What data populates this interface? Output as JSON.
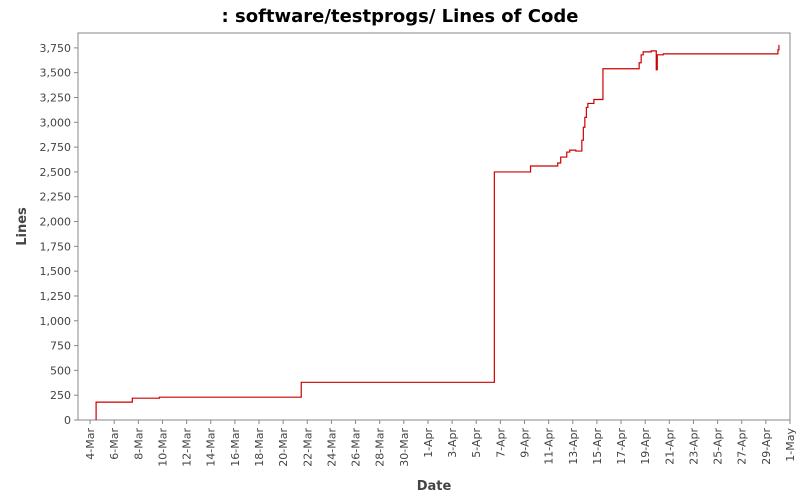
{
  "chart_data": {
    "type": "line",
    "title": ": software/testprogs/ Lines of Code",
    "xlabel": "Date",
    "ylabel": "Lines",
    "x_axis_kind": "date",
    "xlim": [
      "2008-03-03",
      "2008-05-01"
    ],
    "ylim": [
      0,
      3900
    ],
    "grid": false,
    "line_color": "#cc0000",
    "x_ticks": [
      "4-Mar",
      "6-Mar",
      "8-Mar",
      "10-Mar",
      "12-Mar",
      "14-Mar",
      "16-Mar",
      "18-Mar",
      "20-Mar",
      "22-Mar",
      "24-Mar",
      "26-Mar",
      "28-Mar",
      "30-Mar",
      "1-Apr",
      "3-Apr",
      "5-Apr",
      "7-Apr",
      "9-Apr",
      "11-Apr",
      "13-Apr",
      "15-Apr",
      "17-Apr",
      "19-Apr",
      "21-Apr",
      "23-Apr",
      "25-Apr",
      "27-Apr",
      "29-Apr",
      "1-May"
    ],
    "y_ticks": [
      "0",
      "250",
      "500",
      "750",
      "1,000",
      "1,250",
      "1,500",
      "1,750",
      "2,000",
      "2,250",
      "2,500",
      "2,750",
      "3,000",
      "3,250",
      "3,500",
      "3,750"
    ],
    "series": [
      {
        "points": [
          [
            "2008-03-04 12:00",
            0
          ],
          [
            "2008-03-04 12:00",
            180
          ],
          [
            "2008-03-07 12:00",
            180
          ],
          [
            "2008-03-07 12:00",
            220
          ],
          [
            "2008-03-09 18:00",
            220
          ],
          [
            "2008-03-09 18:00",
            230
          ],
          [
            "2008-03-21 12:00",
            230
          ],
          [
            "2008-03-21 12:00",
            380
          ],
          [
            "2008-04-06 12:00",
            380
          ],
          [
            "2008-04-06 12:00",
            2500
          ],
          [
            "2008-04-09 12:00",
            2500
          ],
          [
            "2008-04-09 12:00",
            2560
          ],
          [
            "2008-04-11 18:00",
            2560
          ],
          [
            "2008-04-11 18:00",
            2590
          ],
          [
            "2008-04-12 00:00",
            2590
          ],
          [
            "2008-04-12 00:00",
            2650
          ],
          [
            "2008-04-12 12:00",
            2650
          ],
          [
            "2008-04-12 12:00",
            2700
          ],
          [
            "2008-04-12 18:00",
            2700
          ],
          [
            "2008-04-12 18:00",
            2720
          ],
          [
            "2008-04-13 06:00",
            2720
          ],
          [
            "2008-04-13 06:00",
            2710
          ],
          [
            "2008-04-13 18:00",
            2710
          ],
          [
            "2008-04-13 18:00",
            2820
          ],
          [
            "2008-04-13 21:00",
            2820
          ],
          [
            "2008-04-13 21:00",
            2950
          ],
          [
            "2008-04-14 00:00",
            2950
          ],
          [
            "2008-04-14 00:00",
            3050
          ],
          [
            "2008-04-14 03:00",
            3050
          ],
          [
            "2008-04-14 03:00",
            3150
          ],
          [
            "2008-04-14 06:00",
            3150
          ],
          [
            "2008-04-14 06:00",
            3190
          ],
          [
            "2008-04-14 18:00",
            3190
          ],
          [
            "2008-04-14 18:00",
            3230
          ],
          [
            "2008-04-15 12:00",
            3230
          ],
          [
            "2008-04-15 12:00",
            3540
          ],
          [
            "2008-04-18 12:00",
            3540
          ],
          [
            "2008-04-18 12:00",
            3600
          ],
          [
            "2008-04-18 16:00",
            3600
          ],
          [
            "2008-04-18 16:00",
            3680
          ],
          [
            "2008-04-18 20:00",
            3680
          ],
          [
            "2008-04-18 20:00",
            3710
          ],
          [
            "2008-04-19 12:00",
            3710
          ],
          [
            "2008-04-19 12:00",
            3720
          ],
          [
            "2008-04-19 22:00",
            3720
          ],
          [
            "2008-04-19 22:00",
            3530
          ],
          [
            "2008-04-20 00:00",
            3530
          ],
          [
            "2008-04-20 00:00",
            3680
          ],
          [
            "2008-04-20 12:00",
            3680
          ],
          [
            "2008-04-20 12:00",
            3690
          ],
          [
            "2008-04-30 00:00",
            3690
          ],
          [
            "2008-04-30 00:00",
            3730
          ],
          [
            "2008-04-30 02:00",
            3730
          ],
          [
            "2008-04-30 02:00",
            3780
          ]
        ]
      }
    ]
  }
}
